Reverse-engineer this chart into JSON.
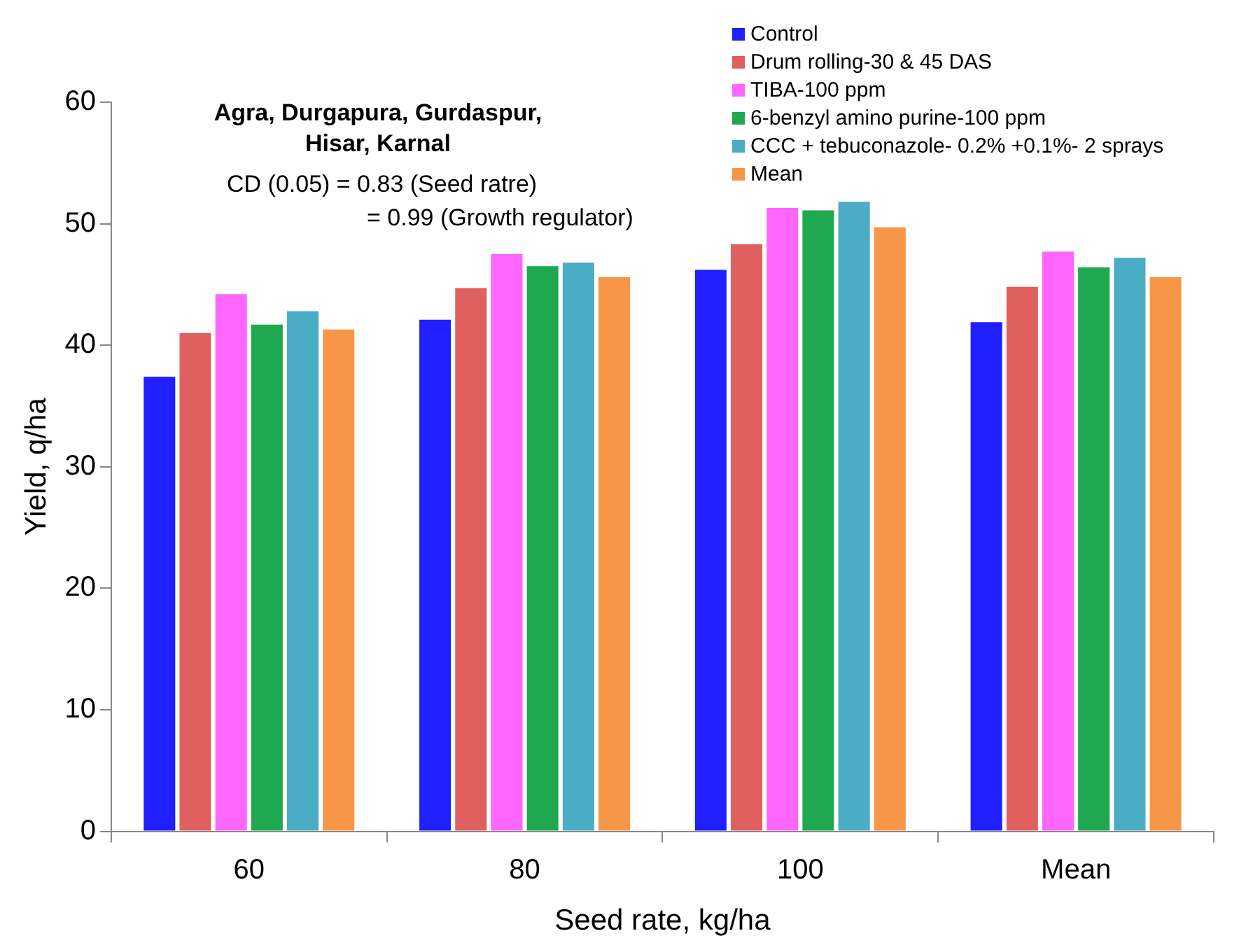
{
  "chart_data": {
    "type": "bar",
    "title": "Agra, Durgapura, Gurdaspur, Hisar, Karnal",
    "xlabel": "Seed rate, kg/ha",
    "ylabel": "Yield, q/ha",
    "categories": [
      "60",
      "80",
      "100",
      "Mean"
    ],
    "series": [
      {
        "name": "Control",
        "color": "#1f1fff",
        "values": [
          37.4,
          42.1,
          46.2,
          41.9
        ]
      },
      {
        "name": "Drum rolling-30 & 45 DAS",
        "color": "#e06060",
        "values": [
          41.0,
          44.7,
          48.3,
          44.8
        ]
      },
      {
        "name": "TIBA-100 ppm",
        "color": "#ff66ff",
        "values": [
          44.2,
          47.5,
          51.3,
          47.7
        ]
      },
      {
        "name": "6-benzyl amino purine-100 ppm",
        "color": "#1fa84f",
        "values": [
          41.7,
          46.5,
          51.1,
          46.4
        ]
      },
      {
        "name": "CCC + tebuconazole- 0.2% +0.1%- 2 sprays",
        "color": "#4bacc6",
        "values": [
          42.8,
          46.8,
          51.8,
          47.2
        ]
      },
      {
        "name": "Mean",
        "color": "#f79646",
        "values": [
          41.3,
          45.6,
          49.7,
          45.6
        ]
      }
    ],
    "ylim": [
      0,
      60
    ],
    "yticks": [
      0,
      10,
      20,
      30,
      40,
      50,
      60
    ],
    "grid": false,
    "legend": "top right",
    "annotations": [
      "CD (0.05) = 0.83 (Seed ratre)",
      "= 0.99 (Growth regulator)"
    ]
  }
}
